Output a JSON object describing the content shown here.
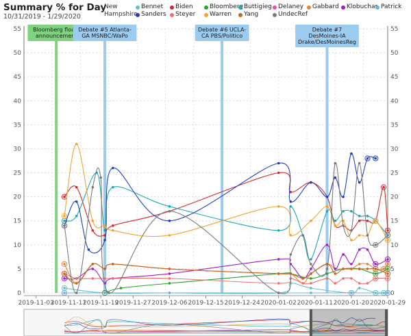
{
  "header": {
    "title": "Summary % for Day",
    "subtitle": "10/31/2019 - 1/29/2020",
    "region": "New Hampshire"
  },
  "chart_data": {
    "type": "line",
    "title": "Summary % for Day",
    "subtitle": "10/31/2019 - 1/29/2020",
    "ylim": [
      0,
      55
    ],
    "yticks": [
      0,
      5,
      10,
      15,
      20,
      25,
      30,
      35,
      40,
      45,
      50,
      55
    ],
    "xlim": [
      "2019-10-31",
      "2020-01-29"
    ],
    "xticks": [
      "2019-11-03",
      "2019-11-11",
      "2019-11-19",
      "2019-11-27",
      "2019-12-06",
      "2019-12-15",
      "2019-12-24",
      "2020-01-02",
      "2020-01-11",
      "2020-01-20",
      "2020-01-29"
    ],
    "grid": true,
    "legend_position": "top",
    "annotations": [
      {
        "date": "2019-11-08",
        "label": "Bloomberg floats announcement",
        "lines": [
          "Bloomberg floats",
          "announcement"
        ],
        "color": "#7ed47e"
      },
      {
        "date": "2019-11-20",
        "label": "Debate #5 Atlanta-GA MSNBC/WaPo",
        "lines": [
          "Debate #5 Atlanta-",
          "GA MSNBC/WaPo"
        ],
        "color": "#9ccbf0"
      },
      {
        "date": "2019-12-19",
        "label": "Debate #6 UCLA-CA PBS/Politico",
        "lines": [
          "Debate #6 UCLA-",
          "CA PBS/Politico"
        ],
        "color": "#9ccbf0"
      },
      {
        "date": "2020-01-14",
        "label": "Debate #7 DesMoines-IA Drake/DesMoinesReg",
        "lines": [
          "Debate #7",
          "DesMoines-IA",
          "Drake/DesMoinesReg"
        ],
        "color": "#9ccbf0"
      }
    ],
    "series": [
      {
        "name": "Bennet",
        "color": "#5ec2c8",
        "points": [
          [
            "2019-11-10",
            1
          ],
          [
            "2019-11-20",
            0
          ],
          [
            "2019-12-06",
            0
          ],
          [
            "2020-01-02",
            0
          ],
          [
            "2020-01-05",
            2
          ],
          [
            "2020-01-10",
            1
          ],
          [
            "2020-01-20",
            0
          ],
          [
            "2020-01-22",
            1
          ],
          [
            "2020-01-26",
            0
          ],
          [
            "2020-01-28",
            0
          ]
        ]
      },
      {
        "name": "Biden",
        "color": "#d62728",
        "points": [
          [
            "2019-11-10",
            20
          ],
          [
            "2019-11-13",
            22
          ],
          [
            "2019-11-17",
            13
          ],
          [
            "2019-11-20",
            12
          ],
          [
            "2019-11-22",
            14
          ],
          [
            "2019-12-06",
            17
          ],
          [
            "2020-01-02",
            25
          ],
          [
            "2020-01-05",
            21
          ],
          [
            "2020-01-10",
            23
          ],
          [
            "2020-01-14",
            20
          ],
          [
            "2020-01-16",
            14
          ],
          [
            "2020-01-18",
            14
          ],
          [
            "2020-01-20",
            13
          ],
          [
            "2020-01-22",
            15
          ],
          [
            "2020-01-24",
            15
          ],
          [
            "2020-01-26",
            15
          ],
          [
            "2020-01-28",
            22
          ],
          [
            "2020-01-29",
            13
          ]
        ]
      },
      {
        "name": "Bloomberg",
        "color": "#2ca02c",
        "points": [
          [
            "2019-11-20",
            0
          ],
          [
            "2019-11-24",
            1
          ],
          [
            "2019-12-06",
            2
          ],
          [
            "2020-01-02",
            4
          ],
          [
            "2020-01-05",
            4
          ],
          [
            "2020-01-10",
            3
          ],
          [
            "2020-01-14",
            4
          ],
          [
            "2020-01-18",
            5
          ],
          [
            "2020-01-22",
            5
          ],
          [
            "2020-01-26",
            4
          ],
          [
            "2020-01-29",
            5
          ]
        ]
      },
      {
        "name": "Buttigieg",
        "color": "#1aa8b8",
        "points": [
          [
            "2019-11-10",
            15
          ],
          [
            "2019-11-13",
            16
          ],
          [
            "2019-11-18",
            25
          ],
          [
            "2019-11-20",
            13
          ],
          [
            "2019-11-22",
            22
          ],
          [
            "2019-12-06",
            18
          ],
          [
            "2020-01-02",
            13
          ],
          [
            "2020-01-05",
            18
          ],
          [
            "2020-01-08",
            12
          ],
          [
            "2020-01-10",
            7
          ],
          [
            "2020-01-14",
            17
          ],
          [
            "2020-01-16",
            15
          ],
          [
            "2020-01-18",
            17
          ],
          [
            "2020-01-20",
            17
          ],
          [
            "2020-01-22",
            16
          ],
          [
            "2020-01-24",
            16
          ],
          [
            "2020-01-26",
            15
          ],
          [
            "2020-01-29",
            12
          ]
        ]
      },
      {
        "name": "Delaney",
        "color": "#e84fa8",
        "points": [
          [
            "2019-11-10",
            0
          ],
          [
            "2019-11-20",
            0
          ],
          [
            "2019-12-06",
            0
          ],
          [
            "2020-01-02",
            0
          ],
          [
            "2020-01-10",
            0
          ],
          [
            "2020-01-20",
            0
          ],
          [
            "2020-01-29",
            0
          ]
        ]
      },
      {
        "name": "Gabbard",
        "color": "#e3823b",
        "points": [
          [
            "2019-11-10",
            6
          ],
          [
            "2019-11-13",
            2
          ],
          [
            "2019-11-17",
            6
          ],
          [
            "2019-11-20",
            5
          ],
          [
            "2019-11-22",
            6
          ],
          [
            "2019-12-06",
            5
          ],
          [
            "2020-01-02",
            4
          ],
          [
            "2020-01-05",
            4
          ],
          [
            "2020-01-08",
            2
          ],
          [
            "2020-01-10",
            4
          ],
          [
            "2020-01-14",
            6
          ],
          [
            "2020-01-16",
            5
          ],
          [
            "2020-01-18",
            5
          ],
          [
            "2020-01-20",
            5
          ],
          [
            "2020-01-22",
            6
          ],
          [
            "2020-01-24",
            6
          ],
          [
            "2020-01-26",
            5
          ],
          [
            "2020-01-28",
            5
          ],
          [
            "2020-01-29",
            6
          ]
        ]
      },
      {
        "name": "Klobuchar",
        "color": "#a01dc4",
        "points": [
          [
            "2019-11-10",
            3
          ],
          [
            "2019-11-13",
            3
          ],
          [
            "2019-11-17",
            5
          ],
          [
            "2019-11-20",
            2
          ],
          [
            "2019-11-22",
            3
          ],
          [
            "2019-12-06",
            4
          ],
          [
            "2020-01-02",
            7
          ],
          [
            "2020-01-05",
            6
          ],
          [
            "2020-01-08",
            3
          ],
          [
            "2020-01-10",
            5
          ],
          [
            "2020-01-14",
            10
          ],
          [
            "2020-01-16",
            5
          ],
          [
            "2020-01-18",
            8
          ],
          [
            "2020-01-20",
            6
          ],
          [
            "2020-01-22",
            9
          ],
          [
            "2020-01-24",
            9
          ],
          [
            "2020-01-26",
            6
          ],
          [
            "2020-01-29",
            7
          ]
        ]
      },
      {
        "name": "Patrick",
        "color": "#64b5e8",
        "points": [
          [
            "2019-11-10",
            0
          ],
          [
            "2019-11-20",
            0
          ],
          [
            "2019-12-06",
            0
          ],
          [
            "2020-01-02",
            0
          ],
          [
            "2020-01-10",
            0
          ],
          [
            "2020-01-20",
            0
          ],
          [
            "2020-01-29",
            0
          ]
        ]
      },
      {
        "name": "Sanders",
        "color": "#1f3fbf",
        "points": [
          [
            "2019-11-10",
            14
          ],
          [
            "2019-11-13",
            19
          ],
          [
            "2019-11-16",
            9
          ],
          [
            "2019-11-20",
            11
          ],
          [
            "2019-11-22",
            26
          ],
          [
            "2019-12-06",
            15
          ],
          [
            "2020-01-02",
            27
          ],
          [
            "2020-01-05",
            19
          ],
          [
            "2020-01-10",
            23
          ],
          [
            "2020-01-14",
            20
          ],
          [
            "2020-01-16",
            24
          ],
          [
            "2020-01-18",
            20
          ],
          [
            "2020-01-20",
            29
          ],
          [
            "2020-01-22",
            23
          ],
          [
            "2020-01-24",
            28
          ],
          [
            "2020-01-26",
            28
          ]
        ]
      },
      {
        "name": "Steyer",
        "color": "#f07070",
        "points": [
          [
            "2019-11-10",
            4
          ],
          [
            "2019-11-13",
            3
          ],
          [
            "2019-11-17",
            3
          ],
          [
            "2019-11-20",
            3
          ],
          [
            "2019-11-22",
            3
          ],
          [
            "2019-12-06",
            3
          ],
          [
            "2020-01-02",
            2
          ],
          [
            "2020-01-05",
            3
          ],
          [
            "2020-01-08",
            2
          ],
          [
            "2020-01-10",
            2
          ],
          [
            "2020-01-14",
            3
          ],
          [
            "2020-01-16",
            2
          ],
          [
            "2020-01-18",
            3
          ],
          [
            "2020-01-20",
            3
          ],
          [
            "2020-01-22",
            2
          ],
          [
            "2020-01-24",
            2
          ],
          [
            "2020-01-26",
            3
          ],
          [
            "2020-01-29",
            3
          ]
        ]
      },
      {
        "name": "Warren",
        "color": "#f0a530",
        "points": [
          [
            "2019-11-10",
            16
          ],
          [
            "2019-11-13",
            31
          ],
          [
            "2019-11-17",
            15
          ],
          [
            "2019-11-20",
            14
          ],
          [
            "2019-11-22",
            13
          ],
          [
            "2019-12-06",
            12
          ],
          [
            "2020-01-02",
            18
          ],
          [
            "2020-01-05",
            12
          ],
          [
            "2020-01-10",
            15
          ],
          [
            "2020-01-14",
            18
          ],
          [
            "2020-01-16",
            14
          ],
          [
            "2020-01-18",
            15
          ],
          [
            "2020-01-20",
            11
          ],
          [
            "2020-01-22",
            12
          ],
          [
            "2020-01-24",
            12
          ],
          [
            "2020-01-26",
            15
          ],
          [
            "2020-01-29",
            11
          ]
        ]
      },
      {
        "name": "Yang",
        "color": "#c8641e",
        "points": [
          [
            "2019-11-10",
            4
          ],
          [
            "2019-11-13",
            2
          ],
          [
            "2019-11-17",
            6
          ],
          [
            "2019-11-20",
            5
          ],
          [
            "2019-11-22",
            6
          ],
          [
            "2019-12-06",
            5
          ],
          [
            "2020-01-02",
            4
          ],
          [
            "2020-01-05",
            4
          ],
          [
            "2020-01-08",
            3
          ],
          [
            "2020-01-10",
            4
          ],
          [
            "2020-01-14",
            6
          ],
          [
            "2020-01-16",
            4
          ],
          [
            "2020-01-18",
            5
          ],
          [
            "2020-01-20",
            5
          ],
          [
            "2020-01-22",
            5
          ],
          [
            "2020-01-24",
            5
          ],
          [
            "2020-01-26",
            5
          ],
          [
            "2020-01-29",
            4
          ]
        ]
      },
      {
        "name": "UndecRef",
        "color": "#7a7a7a",
        "points": [
          [
            "2019-11-10",
            14
          ],
          [
            "2019-11-13",
            0
          ],
          [
            "2019-11-17",
            22
          ],
          [
            "2019-11-19",
            24
          ],
          [
            "2019-11-21",
            0
          ],
          [
            "2019-12-06",
            17
          ],
          [
            "2020-01-02",
            0
          ],
          [
            "2020-01-05",
            8
          ],
          [
            "2020-01-08",
            12
          ],
          [
            "2020-01-10",
            6
          ],
          [
            "2020-01-14",
            5
          ],
          [
            "2020-01-16",
            27
          ],
          [
            "2020-01-18",
            14
          ],
          [
            "2020-01-20",
            13
          ],
          [
            "2020-01-22",
            27
          ],
          [
            "2020-01-24",
            12
          ],
          [
            "2020-01-26",
            10
          ],
          [
            "2020-01-29",
            12
          ]
        ]
      }
    ]
  }
}
